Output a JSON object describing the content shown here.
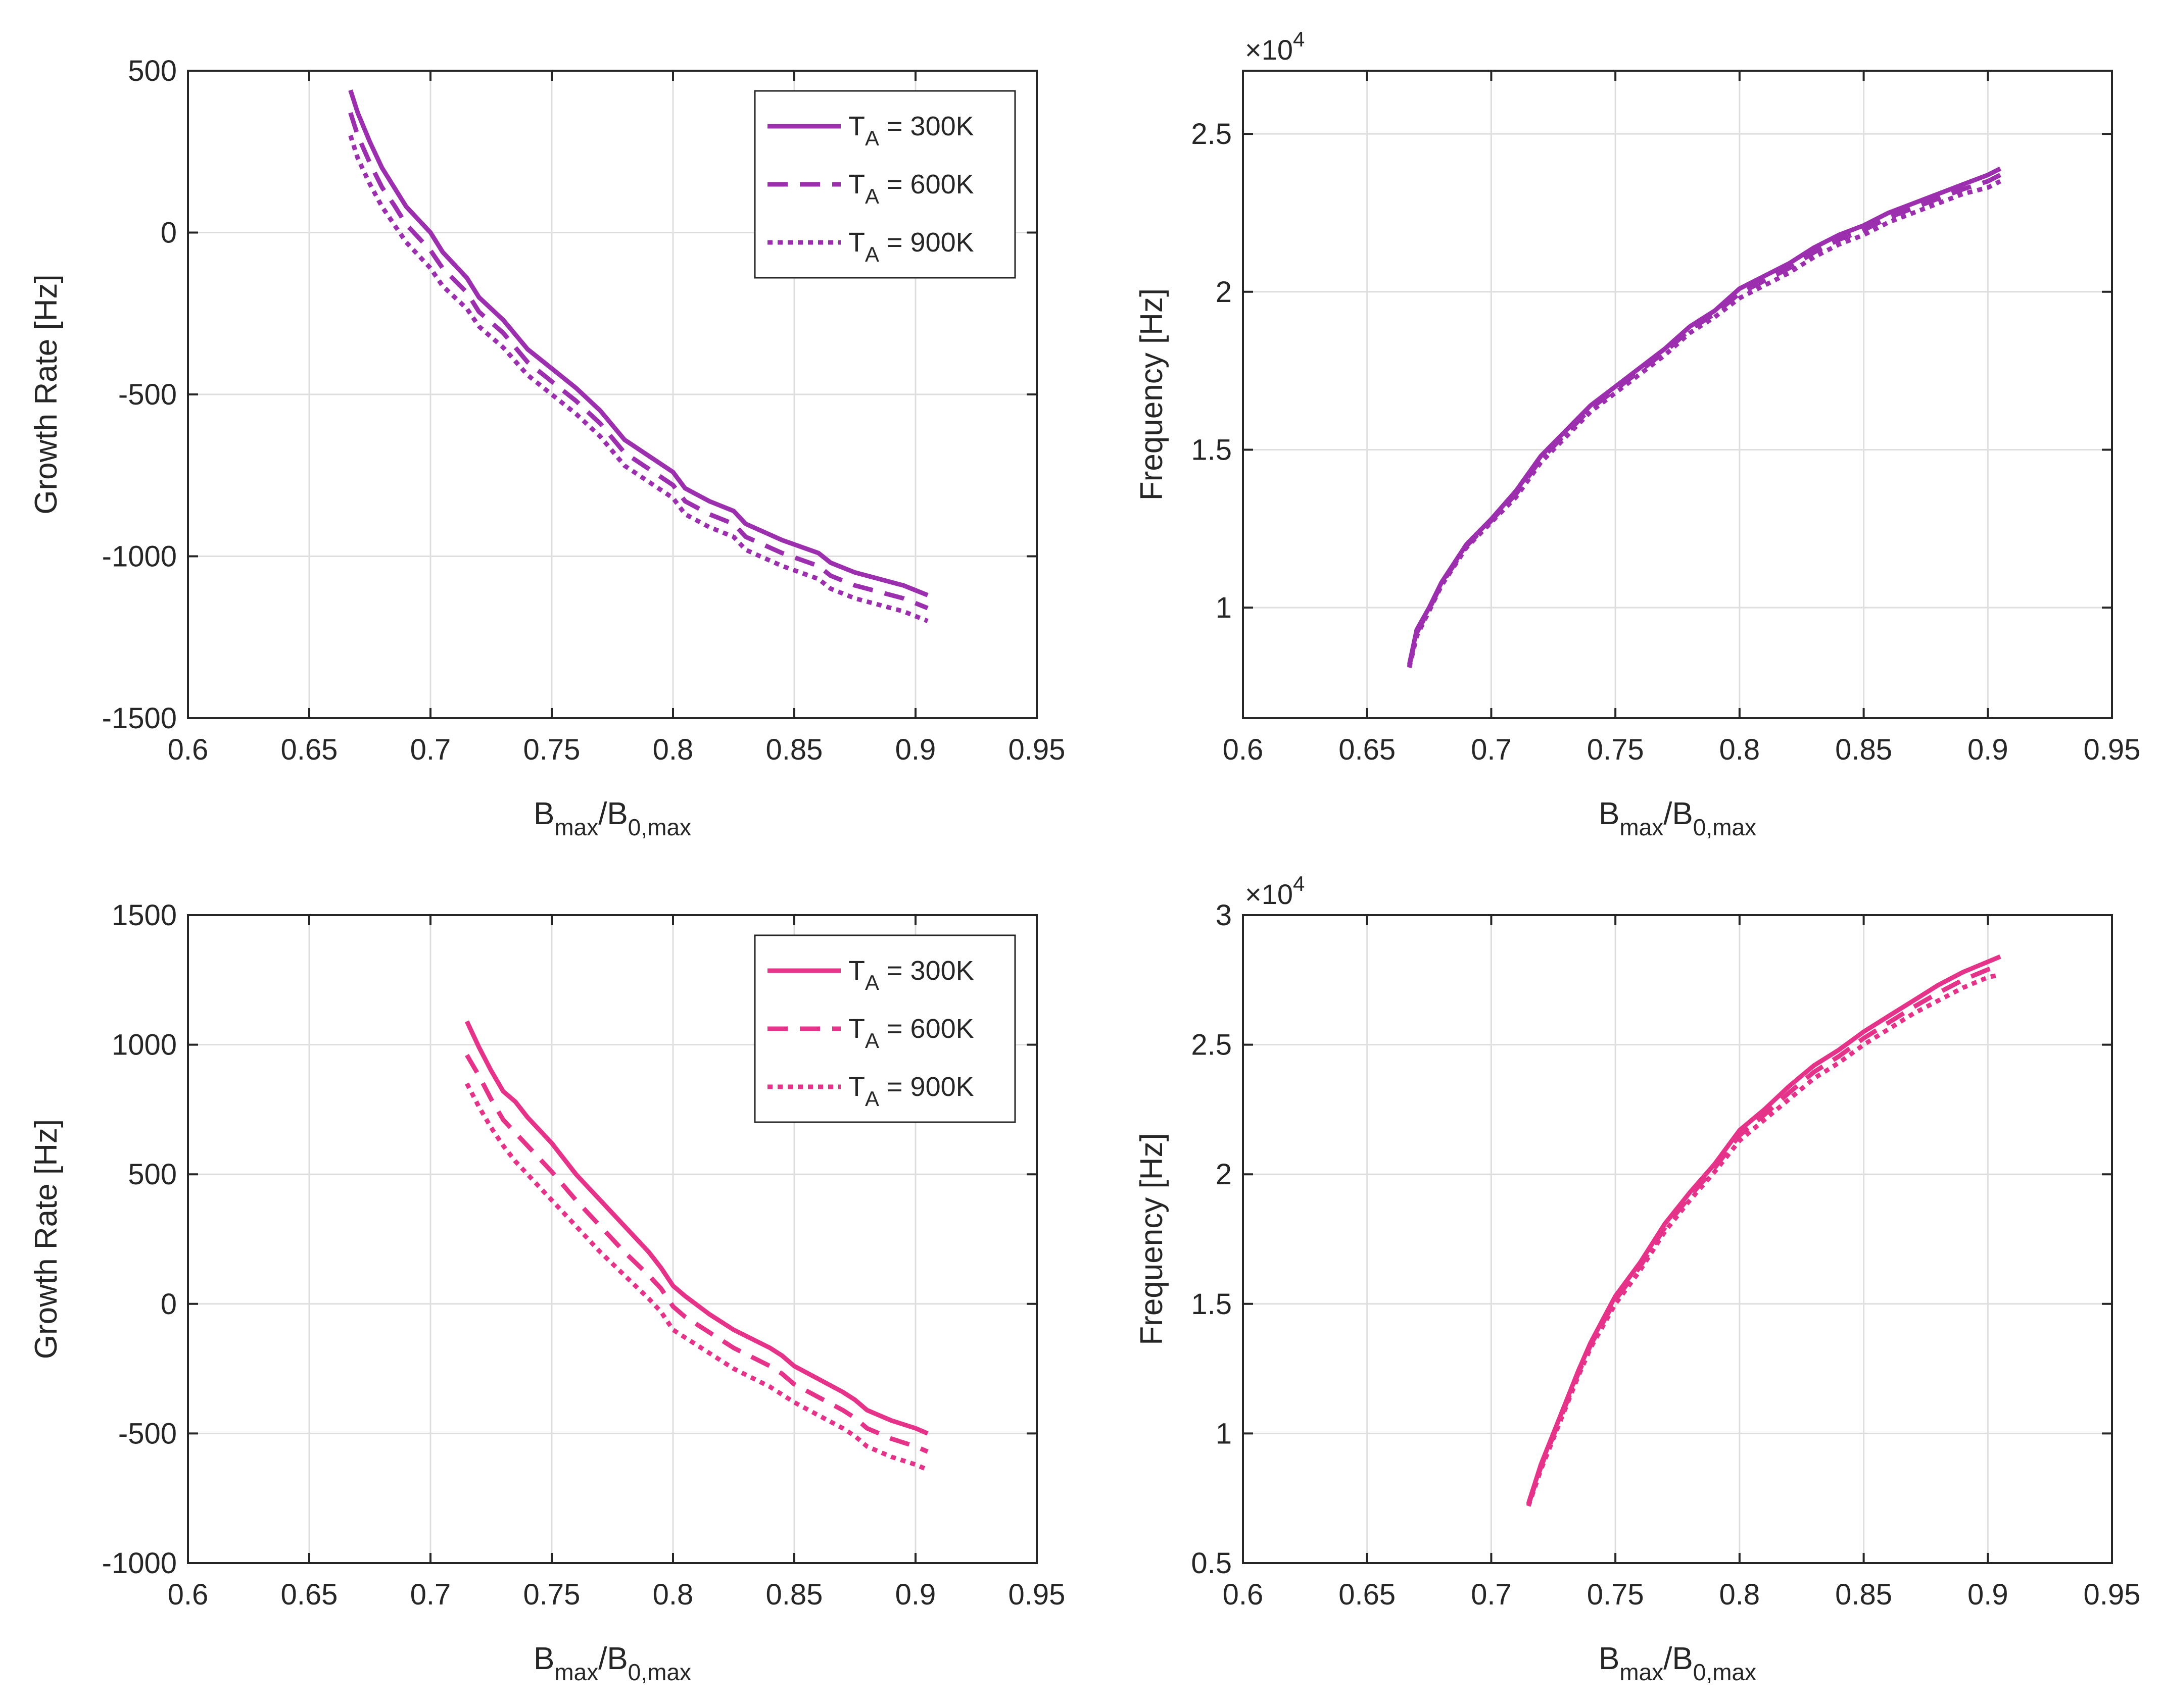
{
  "chart_data": [
    {
      "type": "line",
      "panel": "top-left",
      "xlabel_base": "B",
      "xlabel_sub1": "max",
      "xlabel_slash": "/B",
      "xlabel_sub2": "0,max",
      "ylabel": "Growth Rate [Hz]",
      "xlim": [
        0.6,
        0.95
      ],
      "ylim": [
        -1500,
        500
      ],
      "xticks": [
        0.6,
        0.65,
        0.7,
        0.75,
        0.8,
        0.85,
        0.9,
        0.95
      ],
      "xtick_labels": [
        "0.6",
        "0.65",
        "0.7",
        "0.75",
        "0.8",
        "0.85",
        "0.9",
        "0.95"
      ],
      "yticks": [
        -1500,
        -1000,
        -500,
        0,
        500
      ],
      "ytick_labels": [
        "-1500",
        "-1000",
        "-500",
        "0",
        "500"
      ],
      "scale_label": "",
      "grid": true,
      "legend_position": "top-right",
      "color": "#9b2fae",
      "series": [
        {
          "name": "T_A = 300K",
          "legend_main": "T",
          "legend_sub": "A",
          "legend_rest": " = 300K",
          "style": "solid",
          "x": [
            0.667,
            0.67,
            0.675,
            0.68,
            0.685,
            0.69,
            0.7,
            0.705,
            0.715,
            0.72,
            0.73,
            0.74,
            0.75,
            0.76,
            0.77,
            0.78,
            0.8,
            0.805,
            0.815,
            0.825,
            0.83,
            0.845,
            0.86,
            0.865,
            0.875,
            0.895,
            0.905
          ],
          "y": [
            440,
            370,
            280,
            200,
            140,
            80,
            0,
            -60,
            -140,
            -200,
            -270,
            -360,
            -420,
            -480,
            -550,
            -640,
            -740,
            -790,
            -830,
            -860,
            -900,
            -950,
            -990,
            -1020,
            -1050,
            -1090,
            -1120
          ]
        },
        {
          "name": "T_A = 600K",
          "legend_main": "T",
          "legend_sub": "A",
          "legend_rest": " = 600K",
          "style": "dashed",
          "x": [
            0.667,
            0.67,
            0.675,
            0.68,
            0.685,
            0.69,
            0.7,
            0.705,
            0.715,
            0.72,
            0.73,
            0.74,
            0.75,
            0.76,
            0.77,
            0.78,
            0.8,
            0.805,
            0.815,
            0.825,
            0.83,
            0.845,
            0.86,
            0.865,
            0.875,
            0.895,
            0.905
          ],
          "y": [
            370,
            300,
            215,
            140,
            85,
            25,
            -55,
            -110,
            -185,
            -245,
            -310,
            -400,
            -460,
            -520,
            -590,
            -680,
            -780,
            -830,
            -870,
            -900,
            -940,
            -990,
            -1030,
            -1060,
            -1090,
            -1130,
            -1160
          ]
        },
        {
          "name": "T_A = 900K",
          "legend_main": "T",
          "legend_sub": "A",
          "legend_rest": " = 900K",
          "style": "dotted",
          "x": [
            0.667,
            0.67,
            0.675,
            0.68,
            0.685,
            0.69,
            0.7,
            0.705,
            0.715,
            0.72,
            0.73,
            0.74,
            0.75,
            0.76,
            0.77,
            0.78,
            0.8,
            0.805,
            0.815,
            0.825,
            0.83,
            0.845,
            0.86,
            0.865,
            0.875,
            0.895,
            0.905
          ],
          "y": [
            300,
            230,
            150,
            80,
            25,
            -30,
            -110,
            -165,
            -235,
            -290,
            -355,
            -440,
            -500,
            -560,
            -630,
            -720,
            -820,
            -870,
            -910,
            -940,
            -980,
            -1030,
            -1070,
            -1100,
            -1130,
            -1170,
            -1200
          ]
        }
      ]
    },
    {
      "type": "line",
      "panel": "top-right",
      "xlabel_base": "B",
      "xlabel_sub1": "max",
      "xlabel_slash": "/B",
      "xlabel_sub2": "0,max",
      "ylabel": "Frequency [Hz]",
      "xlim": [
        0.6,
        0.95
      ],
      "ylim": [
        6500,
        27000
      ],
      "xticks": [
        0.6,
        0.65,
        0.7,
        0.75,
        0.8,
        0.85,
        0.9,
        0.95
      ],
      "xtick_labels": [
        "0.6",
        "0.65",
        "0.7",
        "0.75",
        "0.8",
        "0.85",
        "0.9",
        "0.95"
      ],
      "yticks": [
        10000,
        15000,
        20000,
        25000
      ],
      "ytick_labels": [
        "1",
        "1.5",
        "2",
        "2.5"
      ],
      "scale_label": "×10",
      "scale_exponent": "4",
      "grid": true,
      "legend_position": "",
      "color": "#9b2fae",
      "series": [
        {
          "name": "T_A = 300K",
          "style": "solid",
          "x": [
            0.667,
            0.67,
            0.675,
            0.68,
            0.685,
            0.69,
            0.7,
            0.71,
            0.72,
            0.73,
            0.74,
            0.75,
            0.76,
            0.77,
            0.78,
            0.79,
            0.8,
            0.81,
            0.82,
            0.83,
            0.84,
            0.85,
            0.86,
            0.87,
            0.88,
            0.89,
            0.9,
            0.905
          ],
          "y": [
            8200,
            9300,
            10000,
            10800,
            11400,
            12000,
            12800,
            13700,
            14800,
            15600,
            16400,
            17000,
            17600,
            18200,
            18900,
            19400,
            20100,
            20500,
            20900,
            21400,
            21800,
            22100,
            22500,
            22800,
            23100,
            23400,
            23700,
            23900
          ]
        },
        {
          "name": "T_A = 600K",
          "style": "dashed",
          "x": [
            0.667,
            0.67,
            0.675,
            0.68,
            0.685,
            0.69,
            0.7,
            0.71,
            0.72,
            0.73,
            0.74,
            0.75,
            0.76,
            0.77,
            0.78,
            0.79,
            0.8,
            0.81,
            0.82,
            0.83,
            0.84,
            0.85,
            0.86,
            0.87,
            0.88,
            0.89,
            0.9,
            0.905
          ],
          "y": [
            8150,
            9200,
            9950,
            10750,
            11350,
            11950,
            12750,
            13600,
            14700,
            15500,
            16300,
            16900,
            17500,
            18100,
            18800,
            19300,
            19950,
            20350,
            20750,
            21250,
            21650,
            21950,
            22350,
            22650,
            22950,
            23250,
            23500,
            23700
          ]
        },
        {
          "name": "T_A = 900K",
          "style": "dotted",
          "x": [
            0.667,
            0.67,
            0.675,
            0.68,
            0.685,
            0.69,
            0.7,
            0.71,
            0.72,
            0.73,
            0.74,
            0.75,
            0.76,
            0.77,
            0.78,
            0.79,
            0.8,
            0.81,
            0.82,
            0.83,
            0.84,
            0.85,
            0.86,
            0.87,
            0.88,
            0.89,
            0.9,
            0.905
          ],
          "y": [
            8100,
            9100,
            9900,
            10700,
            11300,
            11900,
            12700,
            13500,
            14600,
            15400,
            16200,
            16800,
            17400,
            18000,
            18700,
            19200,
            19800,
            20200,
            20600,
            21100,
            21500,
            21800,
            22200,
            22500,
            22800,
            23100,
            23300,
            23500
          ]
        }
      ]
    },
    {
      "type": "line",
      "panel": "bottom-left",
      "xlabel_base": "B",
      "xlabel_sub1": "max",
      "xlabel_slash": "/B",
      "xlabel_sub2": "0,max",
      "ylabel": "Growth Rate [Hz]",
      "xlim": [
        0.6,
        0.95
      ],
      "ylim": [
        -1000,
        1500
      ],
      "xticks": [
        0.6,
        0.65,
        0.7,
        0.75,
        0.8,
        0.85,
        0.9,
        0.95
      ],
      "xtick_labels": [
        "0.6",
        "0.65",
        "0.7",
        "0.75",
        "0.8",
        "0.85",
        "0.9",
        "0.95"
      ],
      "yticks": [
        -1000,
        -500,
        0,
        500,
        1000,
        1500
      ],
      "ytick_labels": [
        "-1000",
        "-500",
        "0",
        "500",
        "1000",
        "1500"
      ],
      "scale_label": "",
      "grid": true,
      "legend_position": "top-right",
      "color": "#e6338a",
      "series": [
        {
          "name": "T_A = 300K",
          "legend_main": "T",
          "legend_sub": "A",
          "legend_rest": " = 300K",
          "style": "solid",
          "x": [
            0.715,
            0.72,
            0.725,
            0.73,
            0.735,
            0.74,
            0.75,
            0.76,
            0.765,
            0.77,
            0.78,
            0.79,
            0.795,
            0.8,
            0.805,
            0.815,
            0.825,
            0.84,
            0.845,
            0.85,
            0.86,
            0.87,
            0.875,
            0.88,
            0.89,
            0.9,
            0.905
          ],
          "y": [
            1090,
            990,
            900,
            820,
            780,
            720,
            620,
            500,
            450,
            400,
            300,
            200,
            140,
            70,
            30,
            -40,
            -100,
            -170,
            -200,
            -240,
            -290,
            -340,
            -370,
            -410,
            -450,
            -480,
            -500
          ]
        },
        {
          "name": "T_A = 600K",
          "legend_main": "T",
          "legend_sub": "A",
          "legend_rest": " = 600K",
          "style": "dashed",
          "x": [
            0.715,
            0.72,
            0.725,
            0.73,
            0.735,
            0.74,
            0.75,
            0.76,
            0.765,
            0.77,
            0.78,
            0.79,
            0.795,
            0.8,
            0.805,
            0.815,
            0.825,
            0.84,
            0.845,
            0.85,
            0.86,
            0.87,
            0.875,
            0.88,
            0.89,
            0.9,
            0.905
          ],
          "y": [
            960,
            880,
            790,
            710,
            660,
            610,
            510,
            400,
            350,
            300,
            200,
            110,
            60,
            -10,
            -50,
            -110,
            -170,
            -240,
            -270,
            -310,
            -360,
            -410,
            -440,
            -480,
            -520,
            -550,
            -570
          ]
        },
        {
          "name": "T_A = 900K",
          "legend_main": "T",
          "legend_sub": "A",
          "legend_rest": " = 900K",
          "style": "dotted",
          "x": [
            0.715,
            0.72,
            0.725,
            0.73,
            0.735,
            0.74,
            0.75,
            0.76,
            0.765,
            0.77,
            0.78,
            0.79,
            0.795,
            0.8,
            0.805,
            0.815,
            0.825,
            0.84,
            0.845,
            0.85,
            0.86,
            0.87,
            0.875,
            0.88,
            0.89,
            0.9,
            0.905
          ],
          "y": [
            850,
            760,
            680,
            610,
            550,
            500,
            400,
            300,
            250,
            200,
            110,
            20,
            -30,
            -100,
            -130,
            -190,
            -250,
            -320,
            -350,
            -380,
            -430,
            -480,
            -510,
            -550,
            -590,
            -620,
            -640
          ]
        }
      ]
    },
    {
      "type": "line",
      "panel": "bottom-right",
      "xlabel_base": "B",
      "xlabel_sub1": "max",
      "xlabel_slash": "/B",
      "xlabel_sub2": "0,max",
      "ylabel": "Frequency [Hz]",
      "xlim": [
        0.6,
        0.95
      ],
      "ylim": [
        5000,
        30000
      ],
      "xticks": [
        0.6,
        0.65,
        0.7,
        0.75,
        0.8,
        0.85,
        0.9,
        0.95
      ],
      "xtick_labels": [
        "0.6",
        "0.65",
        "0.7",
        "0.75",
        "0.8",
        "0.85",
        "0.9",
        "0.95"
      ],
      "yticks": [
        5000,
        10000,
        15000,
        20000,
        25000,
        30000
      ],
      "ytick_labels": [
        "0.5",
        "1",
        "1.5",
        "2",
        "2.5",
        "3"
      ],
      "scale_label": "×10",
      "scale_exponent": "4",
      "grid": true,
      "legend_position": "",
      "color": "#e6338a",
      "series": [
        {
          "name": "T_A = 300K",
          "style": "solid",
          "x": [
            0.715,
            0.72,
            0.725,
            0.73,
            0.735,
            0.74,
            0.75,
            0.76,
            0.77,
            0.78,
            0.79,
            0.8,
            0.81,
            0.82,
            0.83,
            0.84,
            0.85,
            0.86,
            0.87,
            0.88,
            0.89,
            0.9,
            0.905
          ],
          "y": [
            7300,
            8800,
            10000,
            11200,
            12400,
            13500,
            15300,
            16600,
            18100,
            19300,
            20400,
            21700,
            22500,
            23400,
            24200,
            24800,
            25500,
            26100,
            26700,
            27300,
            27800,
            28200,
            28400
          ]
        },
        {
          "name": "T_A = 600K",
          "style": "dashed",
          "x": [
            0.715,
            0.72,
            0.725,
            0.73,
            0.735,
            0.74,
            0.75,
            0.76,
            0.77,
            0.78,
            0.79,
            0.8,
            0.81,
            0.82,
            0.83,
            0.84,
            0.85,
            0.86,
            0.87,
            0.88,
            0.89,
            0.9,
            0.905
          ],
          "y": [
            7250,
            8700,
            9900,
            11100,
            12300,
            13400,
            15150,
            16450,
            17950,
            19150,
            20250,
            21500,
            22300,
            23150,
            23950,
            24550,
            25250,
            25850,
            26450,
            27000,
            27500,
            27900,
            28050
          ]
        },
        {
          "name": "T_A = 900K",
          "style": "dotted",
          "x": [
            0.715,
            0.72,
            0.725,
            0.73,
            0.735,
            0.74,
            0.75,
            0.76,
            0.77,
            0.78,
            0.79,
            0.8,
            0.81,
            0.82,
            0.83,
            0.84,
            0.85,
            0.86,
            0.87,
            0.88,
            0.89,
            0.9,
            0.905
          ],
          "y": [
            7200,
            8600,
            9800,
            11000,
            12200,
            13300,
            15000,
            16300,
            17800,
            19000,
            20100,
            21300,
            22100,
            22900,
            23700,
            24300,
            25000,
            25600,
            26200,
            26700,
            27200,
            27600,
            27700
          ]
        }
      ]
    }
  ]
}
